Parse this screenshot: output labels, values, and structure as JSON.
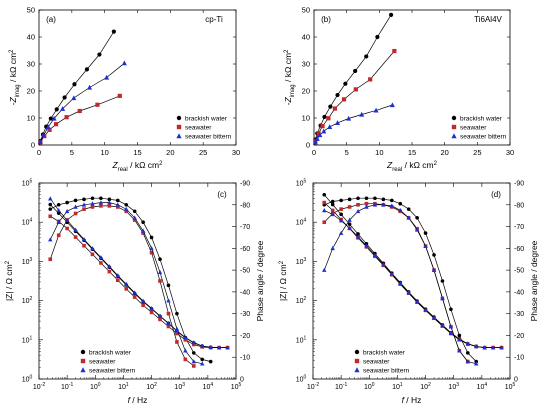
{
  "chart_data": [
    {
      "type": "scatter",
      "panel": "(a)",
      "material": "cp-Ti",
      "xlabel_main": "Z",
      "xlabel_sub": "real",
      "xlabel_unit": " / kΩ cm",
      "xlabel_sup": "2",
      "ylabel_prefix": "-Z",
      "ylabel_sub": "imag",
      "ylabel_unit": " / kΩ cm",
      "ylabel_sup": "2",
      "xlim": [
        0,
        30
      ],
      "ylim": [
        0,
        50
      ],
      "xticks": [
        0,
        5,
        10,
        15,
        20,
        25,
        30
      ],
      "yticks": [
        0,
        10,
        20,
        30,
        40,
        50
      ],
      "legend_position": "bottom-right",
      "series": [
        {
          "name": "brackish water",
          "marker": "circle",
          "color": "#000000",
          "x": [
            0.2,
            0.6,
            1.1,
            1.8,
            2.7,
            3.9,
            5.4,
            7.3,
            9.2,
            11.4
          ],
          "y": [
            1.5,
            3.9,
            6.8,
            9.8,
            13.2,
            17.6,
            22.5,
            28.0,
            33.5,
            42.0
          ]
        },
        {
          "name": "seawater",
          "marker": "square",
          "color": "#c0282d",
          "x": [
            0.2,
            0.8,
            1.6,
            2.6,
            4.2,
            6.2,
            8.9,
            12.3
          ],
          "y": [
            1.0,
            3.3,
            5.6,
            7.7,
            10.3,
            12.6,
            14.9,
            18.2
          ]
        },
        {
          "name": "seawater bittern",
          "marker": "triangle",
          "color": "#1c2fd6",
          "x": [
            0.2,
            0.7,
            1.4,
            2.3,
            3.6,
            5.3,
            7.7,
            10.3,
            13.0
          ],
          "y": [
            1.2,
            3.6,
            6.7,
            9.8,
            13.4,
            17.4,
            21.3,
            25.0,
            30.3
          ]
        }
      ]
    },
    {
      "type": "scatter",
      "panel": "(b)",
      "material": "Ti6Al4V",
      "xlabel_main": "Z",
      "xlabel_sub": "real",
      "xlabel_unit": " / kΩ cm",
      "xlabel_sup": "2",
      "ylabel_prefix": "-Z",
      "ylabel_sub": "imag",
      "ylabel_unit": " / kΩ cm",
      "ylabel_sup": "2",
      "xlim": [
        0,
        30
      ],
      "ylim": [
        0,
        50
      ],
      "xticks": [
        0,
        5,
        10,
        15,
        20,
        25,
        30
      ],
      "yticks": [
        0,
        10,
        20,
        30,
        40,
        50
      ],
      "legend_position": "bottom-right",
      "series": [
        {
          "name": "brackish water",
          "marker": "circle",
          "color": "#000000",
          "x": [
            0.2,
            0.5,
            1.0,
            1.6,
            2.5,
            3.6,
            4.8,
            6.3,
            8.0,
            9.7,
            11.8
          ],
          "y": [
            2.0,
            4.3,
            7.2,
            10.4,
            14.2,
            18.5,
            22.7,
            27.4,
            32.8,
            40.0,
            48.2
          ]
        },
        {
          "name": "seawater",
          "marker": "square",
          "color": "#c0282d",
          "x": [
            0.2,
            0.7,
            1.3,
            2.2,
            3.2,
            4.6,
            6.4,
            8.6,
            12.3
          ],
          "y": [
            1.5,
            4.3,
            7.0,
            9.9,
            13.5,
            16.9,
            20.6,
            24.3,
            34.8
          ]
        },
        {
          "name": "seawater bittern",
          "marker": "triangle",
          "color": "#1c2fd6",
          "x": [
            0.2,
            0.5,
            0.9,
            1.5,
            2.4,
            3.6,
            5.3,
            7.3,
            9.5,
            12.0
          ],
          "y": [
            1.0,
            2.3,
            3.7,
            5.1,
            6.7,
            8.2,
            9.8,
            11.3,
            12.8,
            14.8
          ]
        }
      ]
    },
    {
      "type": "scatter",
      "panel": "(c)",
      "xlabel_main": "f",
      "xlabel_unit": " / Hz",
      "ylabel_left": "|Z| / Ω cm",
      "ylabel_left_sup": "2",
      "ylabel_right": "Phase angle / degree",
      "xscale": "log",
      "yscale_left": "log",
      "xlim": [
        0.01,
        100000
      ],
      "ylim_left": [
        1,
        100000
      ],
      "ylim_right": [
        0,
        -90
      ],
      "xtick_exponents": [
        -2,
        -1,
        0,
        1,
        2,
        3,
        4,
        5
      ],
      "ytick_exponents_left": [
        0,
        1,
        2,
        3,
        4,
        5
      ],
      "yticks_right": [
        "0",
        "-10",
        "-20",
        "-30",
        "-40",
        "-50",
        "-60",
        "-70",
        "-80",
        "-90"
      ],
      "legend_position": "bottom-left",
      "series": [
        {
          "name": "brackish water",
          "marker": "circle",
          "color": "#000000",
          "impedance": {
            "log_f": [
              -1.6,
              -1.3,
              -1.0,
              -0.7,
              -0.4,
              -0.1,
              0.2,
              0.5,
              0.8,
              1.1,
              1.4,
              1.7,
              2.0,
              2.3,
              2.6,
              2.9,
              3.2,
              3.5,
              3.8,
              4.1,
              4.4,
              4.7
            ],
            "log_z": [
              4.45,
              4.23,
              4.0,
              3.77,
              3.54,
              3.31,
              3.08,
              2.85,
              2.62,
              2.4,
              2.18,
              1.97,
              1.79,
              1.6,
              1.42,
              1.22,
              1.05,
              0.92,
              0.84,
              0.81,
              0.8,
              0.8
            ]
          },
          "phase": {
            "log_f": [
              -1.6,
              -1.3,
              -1.0,
              -0.7,
              -0.4,
              -0.1,
              0.2,
              0.5,
              0.8,
              1.1,
              1.4,
              1.7,
              2.0,
              2.3,
              2.6,
              2.9,
              3.2,
              3.5,
              3.8,
              4.1
            ],
            "deg": [
              -78,
              -80,
              -81,
              -82,
              -82.5,
              -83,
              -83,
              -82.5,
              -82,
              -80,
              -77,
              -72,
              -65,
              -55,
              -43,
              -30,
              -19,
              -12,
              -9,
              -8
            ]
          }
        },
        {
          "name": "seawater",
          "marker": "square",
          "color": "#c0282d",
          "impedance": {
            "log_f": [
              -1.6,
              -1.3,
              -1.0,
              -0.7,
              -0.4,
              -0.1,
              0.2,
              0.5,
              0.8,
              1.1,
              1.4,
              1.7,
              2.0,
              2.3,
              2.6,
              2.9,
              3.2,
              3.5,
              3.8,
              4.1,
              4.4,
              4.7
            ],
            "log_z": [
              4.15,
              4.02,
              3.84,
              3.62,
              3.4,
              3.18,
              2.96,
              2.74,
              2.52,
              2.3,
              2.09,
              1.88,
              1.7,
              1.52,
              1.34,
              1.16,
              1.0,
              0.88,
              0.82,
              0.8,
              0.8,
              0.8
            ]
          },
          "phase": {
            "log_f": [
              -1.6,
              -1.3,
              -1.0,
              -0.7,
              -0.4,
              -0.1,
              0.2,
              0.5,
              0.8,
              1.1,
              1.4,
              1.7,
              2.0,
              2.3,
              2.6,
              2.9,
              3.2,
              3.5
            ],
            "deg": [
              -55,
              -66,
              -73,
              -76,
              -78,
              -79,
              -79.5,
              -79.5,
              -79,
              -77,
              -73,
              -67,
              -58,
              -45,
              -30,
              -17,
              -9,
              -6
            ]
          }
        },
        {
          "name": "seawater bittern",
          "marker": "triangle",
          "color": "#1c2fd6",
          "impedance": {
            "log_f": [
              -1.6,
              -1.3,
              -1.0,
              -0.7,
              -0.4,
              -0.1,
              0.2,
              0.5,
              0.8,
              1.1,
              1.4,
              1.7,
              2.0,
              2.3,
              2.6,
              2.9,
              3.2,
              3.5,
              3.8,
              4.1,
              4.4,
              4.7
            ],
            "log_z": [
              4.6,
              4.3,
              4.05,
              3.8,
              3.56,
              3.33,
              3.1,
              2.87,
              2.64,
              2.42,
              2.2,
              1.99,
              1.8,
              1.61,
              1.42,
              1.23,
              1.06,
              0.93,
              0.84,
              0.81,
              0.8,
              0.8
            ]
          },
          "phase": {
            "log_f": [
              -1.6,
              -1.3,
              -1.0,
              -0.7,
              -0.4,
              -0.1,
              0.2,
              0.5,
              0.8,
              1.1,
              1.4,
              1.7,
              2.0,
              2.3,
              2.6,
              2.9,
              3.2,
              3.5,
              3.8
            ],
            "deg": [
              -64,
              -72,
              -77,
              -79,
              -80,
              -80.5,
              -81,
              -81,
              -80,
              -78,
              -74,
              -68,
              -60,
              -49,
              -36,
              -23,
              -13,
              -8,
              -7
            ]
          }
        }
      ]
    },
    {
      "type": "scatter",
      "panel": "(d)",
      "xlabel_main": "f",
      "xlabel_unit": " / Hz",
      "ylabel_left": "|Z| / Ω cm",
      "ylabel_left_sup": "2",
      "ylabel_right": "Phase angle / degree",
      "xscale": "log",
      "yscale_left": "log",
      "xlim": [
        0.01,
        100000
      ],
      "ylim_left": [
        1,
        100000
      ],
      "ylim_right": [
        0,
        -90
      ],
      "xtick_exponents": [
        -2,
        -1,
        0,
        1,
        2,
        3,
        4,
        5
      ],
      "ytick_exponents_left": [
        0,
        1,
        2,
        3,
        4,
        5
      ],
      "yticks_right": [
        "0",
        "-10",
        "-20",
        "-30",
        "-40",
        "-50",
        "-60",
        "-70",
        "-80",
        "-90"
      ],
      "legend_position": "bottom-left",
      "series": [
        {
          "name": "brackish water",
          "marker": "circle",
          "color": "#000000",
          "impedance": {
            "log_f": [
              -1.6,
              -1.3,
              -1.0,
              -0.7,
              -0.4,
              -0.1,
              0.2,
              0.5,
              0.8,
              1.1,
              1.4,
              1.7,
              2.0,
              2.3,
              2.6,
              2.9,
              3.2,
              3.5,
              3.8,
              4.1,
              4.4,
              4.7
            ],
            "log_z": [
              4.7,
              4.45,
              4.2,
              3.95,
              3.7,
              3.45,
              3.2,
              2.95,
              2.7,
              2.46,
              2.22,
              1.99,
              1.78,
              1.58,
              1.38,
              1.18,
              1.02,
              0.9,
              0.83,
              0.8,
              0.8,
              0.8
            ]
          },
          "phase": {
            "log_f": [
              -1.6,
              -1.3,
              -1.0,
              -0.7,
              -0.4,
              -0.1,
              0.2,
              0.5,
              0.8,
              1.1,
              1.4,
              1.7,
              2.0,
              2.3,
              2.6,
              2.9,
              3.2,
              3.5,
              3.8
            ],
            "deg": [
              -80,
              -81.5,
              -82,
              -82.5,
              -83,
              -83,
              -83,
              -82.5,
              -82,
              -80.5,
              -78,
              -74,
              -67,
              -57,
              -45,
              -32,
              -20,
              -12,
              -8
            ]
          }
        },
        {
          "name": "seawater",
          "marker": "square",
          "color": "#c0282d",
          "impedance": {
            "log_f": [
              -1.6,
              -1.3,
              -1.0,
              -0.7,
              -0.4,
              -0.1,
              0.2,
              0.5,
              0.8,
              1.1,
              1.4,
              1.7,
              2.0,
              2.3,
              2.6,
              2.9,
              3.2,
              3.5,
              3.8,
              4.1,
              4.4,
              4.7
            ],
            "log_z": [
              4.5,
              4.3,
              4.07,
              3.84,
              3.6,
              3.37,
              3.13,
              2.9,
              2.66,
              2.42,
              2.19,
              1.96,
              1.75,
              1.55,
              1.35,
              1.16,
              1.0,
              0.89,
              0.83,
              0.8,
              0.8,
              0.8
            ]
          },
          "phase": {
            "log_f": [
              -1.6,
              -1.3,
              -1.0,
              -0.7,
              -0.4,
              -0.1,
              0.2,
              0.5,
              0.8,
              1.1,
              1.4,
              1.7,
              2.0,
              2.3,
              2.6,
              2.9,
              3.2,
              3.5
            ],
            "deg": [
              -72,
              -76,
              -78,
              -79,
              -80,
              -80.5,
              -80.5,
              -80,
              -79,
              -77,
              -74,
              -69,
              -61,
              -50,
              -37,
              -24,
              -13,
              -8
            ]
          }
        },
        {
          "name": "seawater bittern",
          "marker": "triangle",
          "color": "#1c2fd6",
          "impedance": {
            "log_f": [
              -1.6,
              -1.3,
              -1.0,
              -0.7,
              -0.4,
              -0.1,
              0.2,
              0.5,
              0.8,
              1.1,
              1.4,
              1.7,
              2.0,
              2.3,
              2.6,
              2.9,
              3.2,
              3.5,
              3.8,
              4.1,
              4.4,
              4.7
            ],
            "log_z": [
              4.3,
              4.2,
              4.04,
              3.85,
              3.63,
              3.4,
              3.16,
              2.92,
              2.68,
              2.44,
              2.2,
              1.97,
              1.76,
              1.56,
              1.36,
              1.17,
              1.01,
              0.9,
              0.83,
              0.8,
              0.8,
              0.8
            ]
          },
          "phase": {
            "log_f": [
              -1.6,
              -1.3,
              -1.0,
              -0.7,
              -0.4,
              -0.1,
              0.2,
              0.5,
              0.8,
              1.1,
              1.4,
              1.7,
              2.0,
              2.3,
              2.6,
              2.9,
              3.2,
              3.5,
              3.8
            ],
            "deg": [
              -50,
              -60,
              -67,
              -73,
              -77,
              -79,
              -80,
              -80,
              -79.5,
              -77.5,
              -74,
              -68.5,
              -61,
              -50,
              -37,
              -24,
              -13,
              -8,
              -7
            ]
          }
        }
      ]
    }
  ]
}
